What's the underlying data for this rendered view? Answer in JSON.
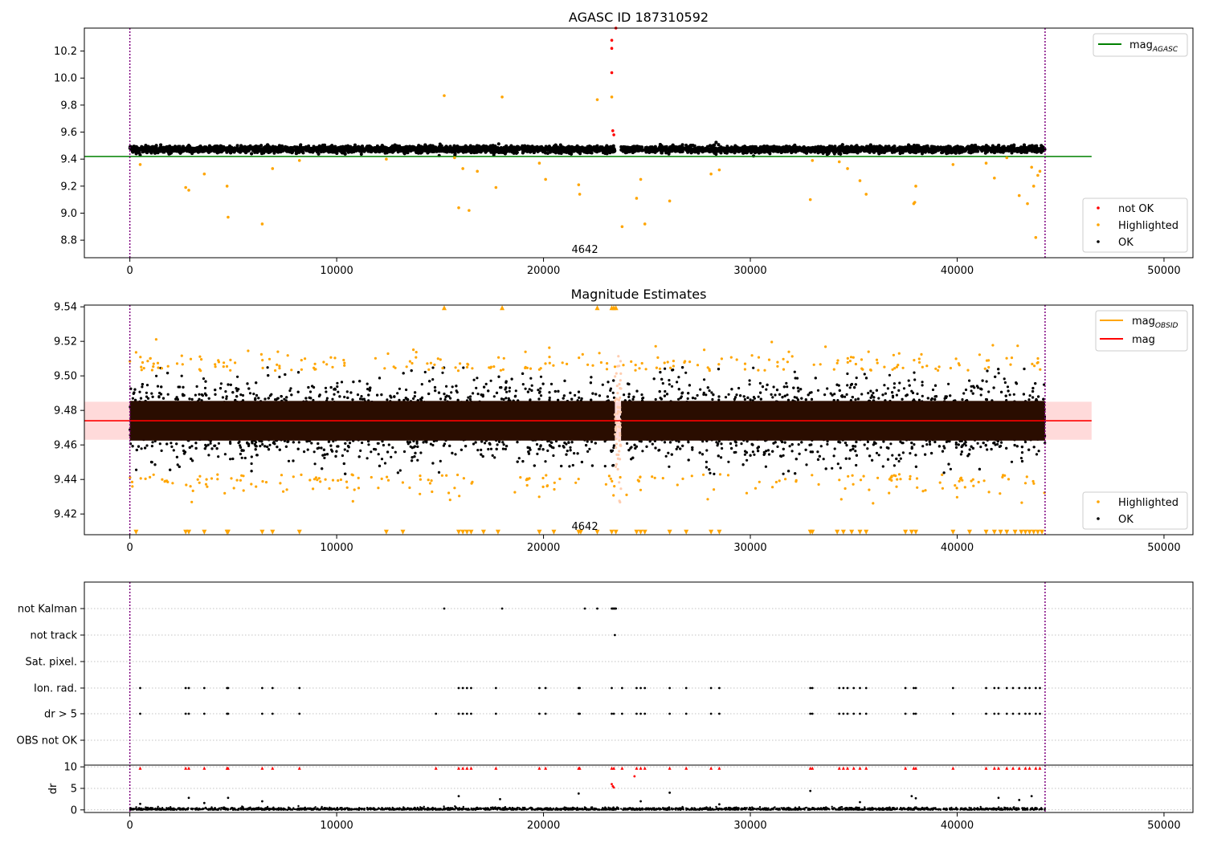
{
  "figure": {
    "panel1_title": "AGASC ID 187310592",
    "panel2_title": "Magnitude Estimates"
  },
  "chart_data": [
    {
      "type": "scatter",
      "title": "AGASC ID 187310592",
      "xlim": [
        -2200,
        51400
      ],
      "ylim": [
        8.67,
        10.37
      ],
      "xticks": [
        0,
        10000,
        20000,
        30000,
        40000,
        50000
      ],
      "yticks": [
        8.8,
        9.0,
        9.2,
        9.4,
        9.6,
        9.8,
        10.0,
        10.2
      ],
      "ytick_labels": [
        "8.8",
        "9.0",
        "9.2",
        "9.4",
        "9.6",
        "9.8",
        "10.0",
        "10.2"
      ],
      "xtick_labels": [
        "0",
        "10000",
        "20000",
        "30000",
        "40000",
        "50000"
      ],
      "vlines": [
        0,
        44250
      ],
      "hline": {
        "name": "mag",
        "sub": "AGASC",
        "y": 9.42,
        "x0": -2200,
        "x1": 46500,
        "color": "#008000"
      },
      "annotation": {
        "text": "4642",
        "x": 22000,
        "y": 8.73
      },
      "ok_band": {
        "x0": 0,
        "x1": 44250,
        "center": 9.472,
        "spread": 0.02
      },
      "series": [
        {
          "name": "not OK",
          "color": "#ff0000",
          "points": [
            [
              23300,
              10.28
            ],
            [
              23300,
              10.22
            ],
            [
              23300,
              10.04
            ],
            [
              23350,
              9.61
            ],
            [
              23400,
              9.58
            ],
            [
              23500,
              10.37
            ]
          ]
        },
        {
          "name": "Highlighted",
          "color": "#ffa500",
          "points": [
            [
              15200,
              9.87
            ],
            [
              18000,
              9.86
            ],
            [
              22600,
              9.84
            ],
            [
              23300,
              9.86
            ],
            [
              500,
              9.36
            ],
            [
              2700,
              9.19
            ],
            [
              2850,
              9.17
            ],
            [
              3600,
              9.29
            ],
            [
              4700,
              9.2
            ],
            [
              4750,
              8.97
            ],
            [
              6400,
              8.92
            ],
            [
              6900,
              9.33
            ],
            [
              8200,
              9.39
            ],
            [
              12400,
              9.4
            ],
            [
              15700,
              9.41
            ],
            [
              15900,
              9.04
            ],
            [
              16100,
              9.33
            ],
            [
              16400,
              9.02
            ],
            [
              16800,
              9.31
            ],
            [
              17700,
              9.19
            ],
            [
              19800,
              9.37
            ],
            [
              20100,
              9.25
            ],
            [
              21700,
              9.21
            ],
            [
              21750,
              9.14
            ],
            [
              23800,
              8.9
            ],
            [
              24500,
              9.11
            ],
            [
              24700,
              9.25
            ],
            [
              24900,
              8.92
            ],
            [
              26100,
              9.09
            ],
            [
              28100,
              9.29
            ],
            [
              28500,
              9.32
            ],
            [
              32900,
              9.1
            ],
            [
              33000,
              9.39
            ],
            [
              34300,
              9.38
            ],
            [
              34700,
              9.33
            ],
            [
              35300,
              9.24
            ],
            [
              35600,
              9.14
            ],
            [
              37900,
              9.07
            ],
            [
              37950,
              9.08
            ],
            [
              38000,
              9.2
            ],
            [
              39800,
              9.36
            ],
            [
              41400,
              9.37
            ],
            [
              41800,
              9.26
            ],
            [
              42400,
              9.41
            ],
            [
              43000,
              9.13
            ],
            [
              43400,
              9.07
            ],
            [
              43600,
              9.34
            ],
            [
              43700,
              9.2
            ],
            [
              43800,
              8.82
            ],
            [
              43900,
              9.28
            ],
            [
              44000,
              9.31
            ]
          ]
        },
        {
          "name": "OK",
          "color": "#000000",
          "points": []
        }
      ],
      "legend_lines": [
        {
          "name": "mag",
          "sub": "AGASC",
          "color": "#008000"
        }
      ],
      "legend_points": [
        {
          "name": "not OK",
          "color": "#ff0000"
        },
        {
          "name": "Highlighted",
          "color": "#ffa500"
        },
        {
          "name": "OK",
          "color": "#000000"
        }
      ]
    },
    {
      "type": "scatter",
      "title": "Magnitude Estimates",
      "xlim": [
        -2200,
        51400
      ],
      "ylim": [
        9.408,
        9.541
      ],
      "xticks": [
        0,
        10000,
        20000,
        30000,
        40000,
        50000
      ],
      "yticks": [
        9.42,
        9.44,
        9.46,
        9.48,
        9.5,
        9.52,
        9.54
      ],
      "ytick_labels": [
        "9.42",
        "9.44",
        "9.46",
        "9.48",
        "9.50",
        "9.52",
        "9.54"
      ],
      "xtick_labels": [
        "0",
        "10000",
        "20000",
        "30000",
        "40000",
        "50000"
      ],
      "vlines": [
        0,
        44250
      ],
      "hline": {
        "name": "mag",
        "y": 9.474,
        "x0": -2200,
        "x1": 46500,
        "color": "#ff0000"
      },
      "band": {
        "y0": 9.463,
        "y1": 9.485,
        "color": "#ffdada"
      },
      "annotation": {
        "text": "4642",
        "x": 22000,
        "y": 9.413
      },
      "highlight_up": [
        15200,
        18000,
        22600,
        23300,
        23400,
        23500
      ],
      "highlight_down": [
        300,
        2700,
        2850,
        3600,
        4700,
        4750,
        6400,
        6900,
        8200,
        12400,
        13200,
        15900,
        16100,
        16300,
        16500,
        17100,
        17800,
        19800,
        20500,
        21700,
        21800,
        22600,
        23300,
        23500,
        24500,
        24700,
        24900,
        26100,
        26900,
        28100,
        28500,
        32900,
        33000,
        34200,
        34500,
        34900,
        35300,
        35600,
        37500,
        37800,
        38000,
        39800,
        40600,
        41400,
        41800,
        42100,
        42400,
        42800,
        43100,
        43300,
        43500,
        43700,
        43900,
        44100
      ],
      "legend_lines": [
        {
          "name": "mag",
          "sub": "OBSID",
          "color": "#ffa500"
        },
        {
          "name": "mag",
          "sub": "",
          "color": "#ff0000"
        }
      ],
      "legend_points": [
        {
          "name": "Highlighted",
          "color": "#ffa500"
        },
        {
          "name": "OK",
          "color": "#000000"
        }
      ]
    },
    {
      "type": "scatter",
      "title": "",
      "xlim": [
        -2200,
        51400
      ],
      "categories": [
        "not Kalman",
        "not track",
        "Sat. pixel.",
        "Ion. rad.",
        "dr > 5",
        "OBS not OK"
      ],
      "vlines": [
        0,
        44250
      ],
      "flags": {
        "not Kalman": [
          15200,
          18000,
          22000,
          22600,
          23300,
          23350,
          23400,
          23450,
          23500
        ],
        "not track": [
          23450
        ],
        "Sat. pixel.": [],
        "Ion. rad.": [
          500,
          2700,
          2850,
          3600,
          4700,
          4750,
          6400,
          6900,
          8200,
          15900,
          16100,
          16300,
          16500,
          17700,
          19800,
          20100,
          21700,
          21750,
          23300,
          23800,
          24500,
          24700,
          24900,
          26100,
          26900,
          28100,
          28500,
          32900,
          33000,
          34300,
          34500,
          34700,
          35000,
          35300,
          35600,
          37500,
          37900,
          38000,
          39800,
          41400,
          41800,
          42000,
          42400,
          42700,
          43000,
          43300,
          43500,
          43800,
          44000
        ],
        "dr > 5": [
          500,
          2700,
          2850,
          3600,
          4700,
          4750,
          6400,
          6900,
          8200,
          14800,
          15900,
          16100,
          16300,
          16500,
          17700,
          19800,
          20100,
          21700,
          21750,
          23300,
          23400,
          23800,
          24500,
          24700,
          24900,
          26100,
          26900,
          28100,
          28500,
          32900,
          33000,
          34300,
          34500,
          34700,
          35000,
          35300,
          35600,
          37500,
          37900,
          38000,
          39800,
          41400,
          41800,
          42000,
          42400,
          42700,
          43000,
          43300,
          43500,
          43800,
          44000
        ],
        "OBS not OK": []
      },
      "dr_axis": {
        "ylabel": "dr",
        "yticks": [
          0,
          5,
          10
        ],
        "ytick_labels": [
          "0",
          "5",
          "10"
        ],
        "ylim": [
          -0.6,
          10.4
        ]
      },
      "dr_points": [
        [
          23300,
          6.0
        ],
        [
          23400,
          5.2
        ],
        [
          24400,
          7.8
        ],
        [
          23350,
          5.5
        ],
        [
          26100,
          4.0
        ],
        [
          32900,
          4.4
        ],
        [
          21700,
          3.8
        ],
        [
          15900,
          3.2
        ],
        [
          2850,
          2.8
        ],
        [
          37800,
          3.2
        ],
        [
          38000,
          2.7
        ],
        [
          4750,
          2.8
        ],
        [
          17900,
          2.5
        ],
        [
          24700,
          2.0
        ],
        [
          42000,
          2.8
        ],
        [
          43600,
          3.2
        ],
        [
          43000,
          2.3
        ],
        [
          6400,
          2.0
        ],
        [
          3600,
          1.6
        ],
        [
          35300,
          1.8
        ],
        [
          500,
          1.4
        ],
        [
          28500,
          1.3
        ]
      ],
      "xticks": [
        0,
        10000,
        20000,
        30000,
        40000,
        50000
      ],
      "xtick_labels": [
        "0",
        "10000",
        "20000",
        "30000",
        "40000",
        "50000"
      ]
    }
  ]
}
